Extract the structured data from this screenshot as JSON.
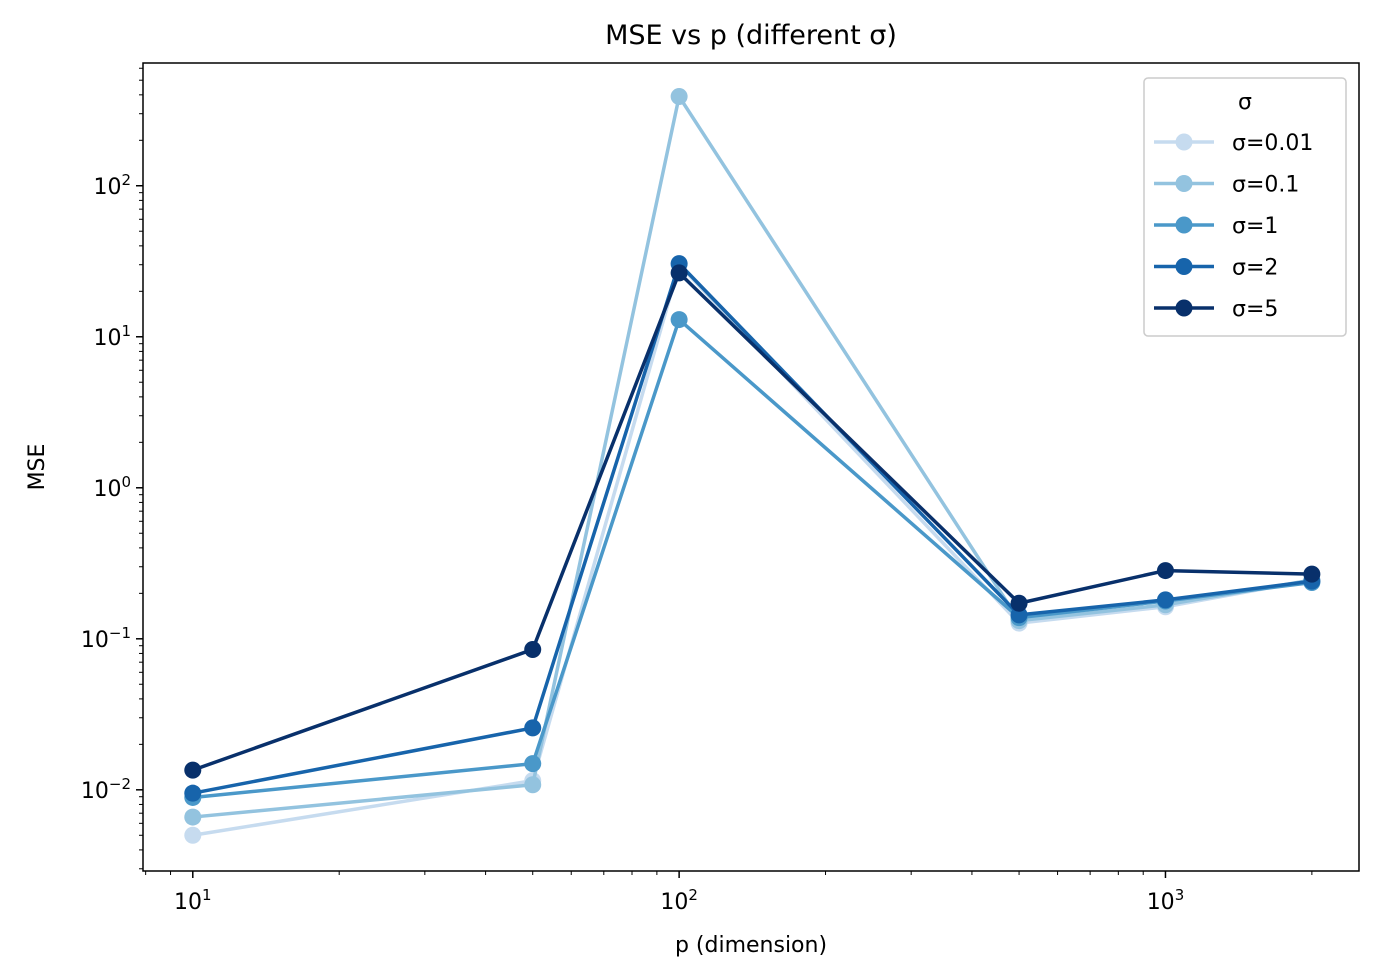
{
  "chart_data": {
    "type": "line",
    "title": "MSE vs p (different σ)",
    "xlabel": "p (dimension)",
    "ylabel": "MSE",
    "x_scale": "log",
    "y_scale": "log",
    "xlim": [
      7.9,
      2500
    ],
    "ylim": [
      0.0029,
      650
    ],
    "x_ticks": [
      {
        "value": 10,
        "base": "10",
        "exp": "1"
      },
      {
        "value": 100,
        "base": "10",
        "exp": "2"
      },
      {
        "value": 1000,
        "base": "10",
        "exp": "3"
      }
    ],
    "y_ticks": [
      {
        "value": 0.01,
        "base": "10",
        "exp": "−2"
      },
      {
        "value": 0.1,
        "base": "10",
        "exp": "−1"
      },
      {
        "value": 1,
        "base": "10",
        "exp": "0"
      },
      {
        "value": 10,
        "base": "10",
        "exp": "1"
      },
      {
        "value": 100,
        "base": "10",
        "exp": "2"
      }
    ],
    "grid": false,
    "legend": {
      "title": "σ",
      "placement": "top-right"
    },
    "x": [
      10,
      50,
      100,
      500,
      1000,
      2000
    ],
    "series": [
      {
        "name": "σ=0.01",
        "color": "#c6dbef",
        "values": [
          0.005,
          0.0115,
          30,
          0.127,
          0.163,
          0.245
        ]
      },
      {
        "name": "σ=0.1",
        "color": "#93c3df",
        "values": [
          0.0066,
          0.0108,
          390,
          0.132,
          0.168,
          0.245
        ]
      },
      {
        "name": "σ=1",
        "color": "#4a98c9",
        "values": [
          0.0089,
          0.0149,
          13,
          0.138,
          0.178,
          0.236
        ]
      },
      {
        "name": "σ=2",
        "color": "#1764ab",
        "values": [
          0.0095,
          0.0257,
          30.5,
          0.144,
          0.181,
          0.241
        ]
      },
      {
        "name": "σ=5",
        "color": "#08306b",
        "values": [
          0.0135,
          0.085,
          26.5,
          0.172,
          0.283,
          0.268
        ]
      }
    ]
  }
}
